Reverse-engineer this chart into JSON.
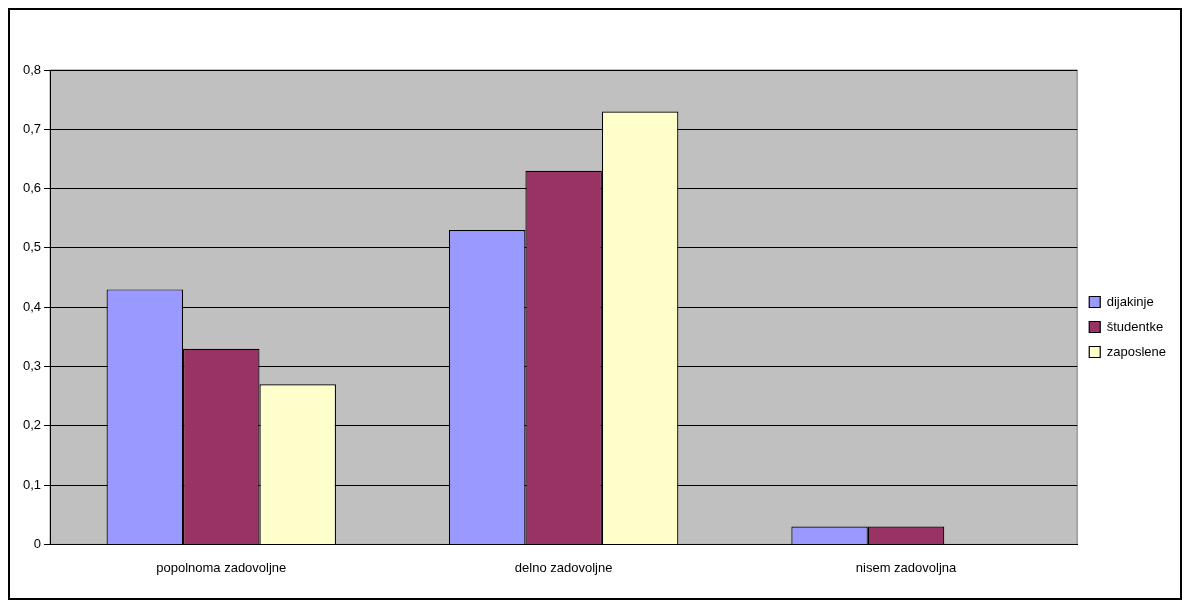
{
  "chart_data": {
    "type": "bar",
    "categories": [
      "popolnoma zadovoljne",
      "delno zadovoljne",
      "nisem zadovoljna"
    ],
    "series": [
      {
        "name": "dijakinje",
        "color": "#9999ff",
        "values": [
          0.43,
          0.53,
          0.03
        ]
      },
      {
        "name": "študentke",
        "color": "#993366",
        "values": [
          0.33,
          0.63,
          0.03
        ]
      },
      {
        "name": "zaposlene",
        "color": "#ffffcc",
        "values": [
          0.27,
          0.73,
          0
        ]
      }
    ],
    "ylim": [
      0,
      0.8
    ],
    "yticks": [
      0,
      {
        "value": 0.1,
        "label": "0,1"
      },
      {
        "value": 0.2,
        "label": "0,2"
      },
      {
        "value": 0.3,
        "label": "0,3"
      },
      {
        "value": 0.4,
        "label": "0,4"
      },
      {
        "value": 0.5,
        "label": "0,5"
      },
      {
        "value": 0.6,
        "label": "0,6"
      },
      {
        "value": 0.7,
        "label": "0,7"
      },
      {
        "value": 0.8,
        "label": "0,8"
      }
    ],
    "grid": "y",
    "legend": "right"
  }
}
